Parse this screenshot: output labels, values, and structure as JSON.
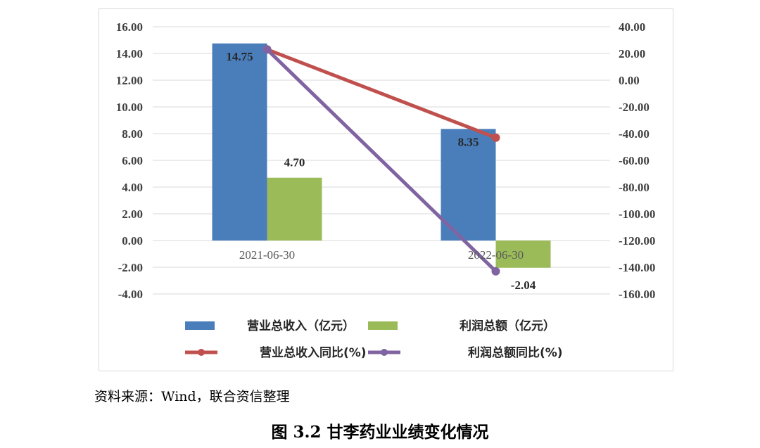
{
  "source_note": "资料来源：Wind，联合资信整理",
  "figure_caption": "图 3.2   甘李药业业绩变化情况",
  "colors": {
    "revenue_bar": "#4a7ebb",
    "profit_bar": "#9bbb59",
    "revenue_yoy_line": "#c0504d",
    "profit_yoy_line": "#8064a2",
    "grid": "#d9d9d9"
  },
  "chart_data": {
    "type": "bar",
    "categories": [
      "2021-06-30",
      "2022-06-30"
    ],
    "series": [
      {
        "name": "营业总收入（亿元）",
        "type": "bar",
        "axis": "left",
        "values": [
          14.75,
          8.35
        ],
        "labels": [
          "14.75",
          "8.35"
        ]
      },
      {
        "name": "利润总额（亿元）",
        "type": "bar",
        "axis": "left",
        "values": [
          4.7,
          -2.04
        ],
        "labels": [
          "4.70",
          "-2.04"
        ]
      },
      {
        "name": "营业总收入同比(%)",
        "type": "line",
        "axis": "right",
        "values": [
          23,
          -43
        ]
      },
      {
        "name": "利润总额同比(%)",
        "type": "line",
        "axis": "right",
        "values": [
          23,
          -143
        ]
      }
    ],
    "left_axis": {
      "ylim": [
        -4,
        16
      ],
      "ticks": [
        "16.00",
        "14.00",
        "12.00",
        "10.00",
        "8.00",
        "6.00",
        "4.00",
        "2.00",
        "0.00",
        "-2.00",
        "-4.00"
      ]
    },
    "right_axis": {
      "ylim": [
        -160,
        40
      ],
      "ticks": [
        "40.00",
        "20.00",
        "0.00",
        "-20.00",
        "-40.00",
        "-60.00",
        "-80.00",
        "-100.00",
        "-120.00",
        "-140.00",
        "-160.00"
      ]
    },
    "grid": true,
    "legend_position": "bottom"
  }
}
